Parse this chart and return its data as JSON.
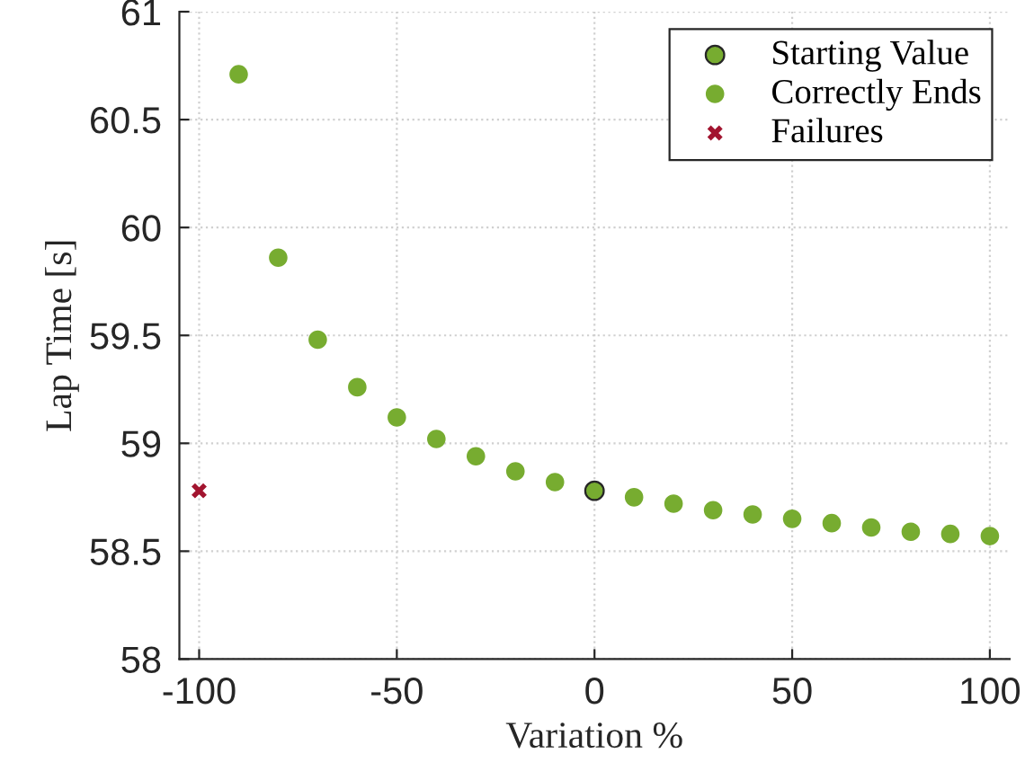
{
  "chart_data": {
    "type": "scatter",
    "xlabel": "Variation %",
    "ylabel": "Lap Time [s]",
    "xlim": [
      -105,
      105
    ],
    "xticks": [
      -100,
      -50,
      0,
      50,
      100
    ],
    "ylim": [
      58,
      61
    ],
    "yticks": [
      58,
      58.5,
      59,
      59.5,
      60,
      60.5,
      61
    ],
    "grid": true,
    "legend": "top right",
    "series": [
      {
        "name": "Starting Value",
        "color": "#77ac30",
        "marker": "circle",
        "x": [
          0
        ],
        "values": [
          58.78
        ]
      },
      {
        "name": "Correctly Ends",
        "color": "#77ac30",
        "marker": "circle",
        "x": [
          -90,
          -80,
          -70,
          -60,
          -50,
          -40,
          -30,
          -20,
          -10,
          10,
          20,
          30,
          40,
          50,
          60,
          70,
          80,
          90,
          100
        ],
        "values": [
          60.71,
          59.86,
          59.48,
          59.26,
          59.12,
          59.02,
          58.94,
          58.87,
          58.82,
          58.75,
          58.72,
          58.69,
          58.67,
          58.65,
          58.63,
          58.61,
          58.59,
          58.58,
          58.57
        ]
      },
      {
        "name": "Failures",
        "color": "#a2142f",
        "marker": "cross",
        "x": [
          -100
        ],
        "values": [
          58.78
        ]
      }
    ]
  }
}
